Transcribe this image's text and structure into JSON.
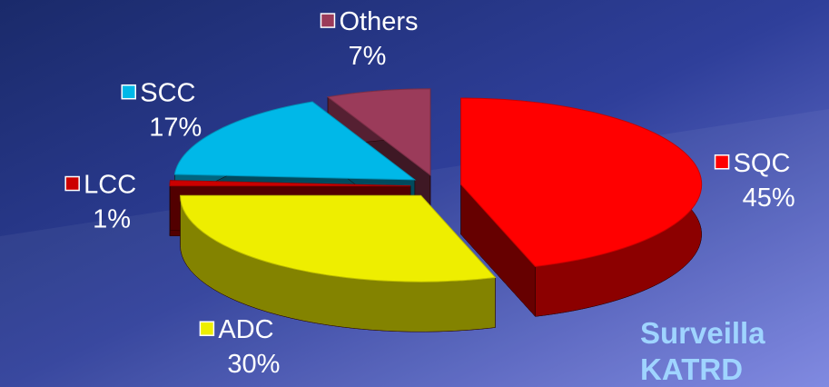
{
  "chart_data": {
    "type": "pie",
    "categories": [
      "SQC",
      "ADC",
      "LCC",
      "SCC",
      "Others"
    ],
    "values": [
      45,
      30,
      1,
      17,
      7
    ],
    "value_labels": [
      "45%",
      "30%",
      "1%",
      "17%",
      "7%"
    ],
    "colors": [
      "#ff0000",
      "#eeee00",
      "#cc0000",
      "#00b8e8",
      "#9b3b5a"
    ],
    "annotations": [
      "Surveilla",
      "KATRD"
    ]
  }
}
